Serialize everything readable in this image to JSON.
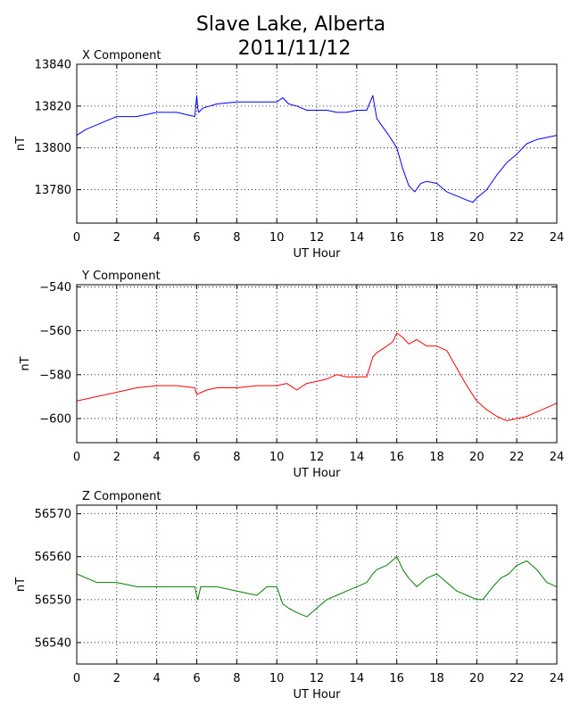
{
  "figure": {
    "title_line1": "Slave Lake, Alberta",
    "title_line2": "2011/11/12"
  },
  "chart_data": [
    {
      "type": "line",
      "title": "X Component",
      "xlabel": "UT Hour",
      "ylabel": "nT",
      "xlim": [
        0,
        24
      ],
      "ylim": [
        13764,
        13840
      ],
      "xticks": [
        0,
        2,
        4,
        6,
        8,
        10,
        12,
        14,
        16,
        18,
        20,
        22,
        24
      ],
      "yticks": [
        13780,
        13800,
        13820,
        13840
      ],
      "grid": true,
      "series": [
        {
          "color": "#0000ff",
          "x": [
            0,
            0.5,
            1,
            1.5,
            2,
            3,
            4,
            5,
            5.9,
            6.0,
            6.05,
            6.1,
            6.3,
            7,
            8,
            9,
            10,
            10.3,
            10.6,
            11,
            11.5,
            12,
            12.5,
            13,
            13.5,
            14,
            14.5,
            14.8,
            15,
            15.3,
            15.6,
            16,
            16.3,
            16.6,
            16.9,
            17.2,
            17.5,
            18,
            18.5,
            19,
            19.5,
            19.8,
            20,
            20.5,
            21,
            21.5,
            22,
            22.5,
            23,
            23.5,
            24
          ],
          "y": [
            13806,
            13809,
            13811,
            13813,
            13815,
            13815,
            13817,
            13817,
            13815,
            13825,
            13819,
            13817,
            13819,
            13821,
            13822,
            13822,
            13822,
            13824,
            13821,
            13820,
            13818,
            13818,
            13818,
            13817,
            13817,
            13818,
            13818,
            13825,
            13814,
            13810,
            13806,
            13800,
            13790,
            13782,
            13779,
            13783,
            13784,
            13783,
            13779,
            13777,
            13775,
            13774,
            13776,
            13780,
            13787,
            13793,
            13797,
            13802,
            13804,
            13805,
            13806
          ]
        }
      ]
    },
    {
      "type": "line",
      "title": "Y Component",
      "xlabel": "UT Hour",
      "ylabel": "nT",
      "xlim": [
        0,
        24
      ],
      "ylim": [
        -611,
        -539
      ],
      "xticks": [
        0,
        2,
        4,
        6,
        8,
        10,
        12,
        14,
        16,
        18,
        20,
        22,
        24
      ],
      "yticks": [
        -600,
        -580,
        -560,
        -540
      ],
      "grid": true,
      "series": [
        {
          "color": "#ff0000",
          "x": [
            0,
            1,
            2,
            3,
            4,
            5,
            5.9,
            6.0,
            6.5,
            7,
            8,
            9,
            10,
            10.5,
            11,
            11.5,
            12,
            12.5,
            13,
            13.5,
            14,
            14.5,
            14.8,
            15,
            15.5,
            15.8,
            16,
            16.3,
            16.6,
            17,
            17.5,
            18,
            18.5,
            19,
            19.5,
            20,
            20.5,
            21,
            21.5,
            22,
            22.5,
            23,
            23.5,
            24
          ],
          "y": [
            -592,
            -590,
            -588,
            -586,
            -585,
            -585,
            -586,
            -589,
            -587,
            -586,
            -586,
            -585,
            -585,
            -584,
            -587,
            -584,
            -583,
            -582,
            -580,
            -581,
            -581,
            -581,
            -572,
            -570,
            -567,
            -565,
            -561,
            -563,
            -566,
            -564,
            -567,
            -567,
            -569,
            -577,
            -585,
            -592,
            -596,
            -599,
            -601,
            -600,
            -599,
            -597,
            -595,
            -593
          ]
        }
      ]
    },
    {
      "type": "line",
      "title": "Z Component",
      "xlabel": "UT Hour",
      "ylabel": "nT",
      "xlim": [
        0,
        24
      ],
      "ylim": [
        56535,
        56572
      ],
      "xticks": [
        0,
        2,
        4,
        6,
        8,
        10,
        12,
        14,
        16,
        18,
        20,
        22,
        24
      ],
      "yticks": [
        56540,
        56550,
        56560,
        56570
      ],
      "grid": true,
      "series": [
        {
          "color": "#008000",
          "x": [
            0,
            0.5,
            1,
            2,
            3,
            4,
            5,
            5.9,
            6.05,
            6.2,
            7,
            8,
            9,
            9.5,
            10,
            10.3,
            10.6,
            11,
            11.5,
            12,
            12.5,
            13,
            13.5,
            14,
            14.5,
            14.8,
            15,
            15.5,
            16,
            16.3,
            16.6,
            17,
            17.5,
            18,
            18.5,
            19,
            19.5,
            20,
            20.3,
            20.8,
            21.2,
            21.6,
            22,
            22.5,
            23,
            23.5,
            24
          ],
          "y": [
            56556,
            56555,
            56554,
            56554,
            56553,
            56553,
            56553,
            56553,
            56550,
            56553,
            56553,
            56552,
            56551,
            56553,
            56553,
            56549,
            56548,
            56547,
            56546,
            56548,
            56550,
            56551,
            56552,
            56553,
            56554,
            56556,
            56557,
            56558,
            56560,
            56557,
            56555,
            56553,
            56555,
            56556,
            56554,
            56552,
            56551,
            56550,
            56550,
            56553,
            56555,
            56556,
            56558,
            56559,
            56557,
            56554,
            56553
          ]
        }
      ]
    }
  ]
}
